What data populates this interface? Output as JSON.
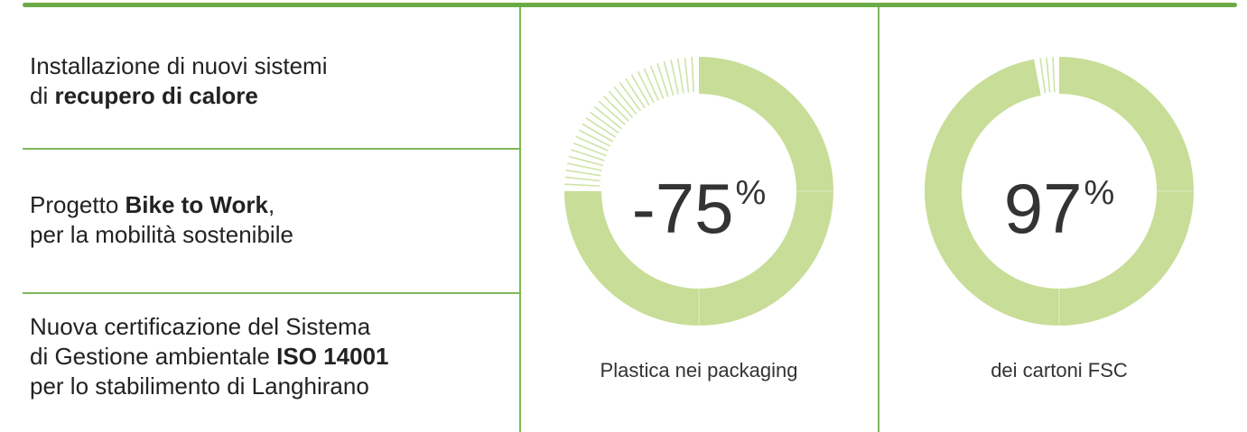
{
  "items": [
    {
      "lines": [
        [
          {
            "t": "Installazione di nuovi sistemi",
            "b": false
          }
        ],
        [
          {
            "t": "di ",
            "b": false
          },
          {
            "t": "recupero di calore",
            "b": true
          }
        ]
      ]
    },
    {
      "lines": [
        [
          {
            "t": "Progetto ",
            "b": false
          },
          {
            "t": "Bike to Work",
            "b": true
          },
          {
            "t": ",",
            "b": false
          }
        ],
        [
          {
            "t": "per la mobilità sostenibile",
            "b": false
          }
        ]
      ]
    },
    {
      "lines": [
        [
          {
            "t": "Nuova certificazione del Sistema",
            "b": false
          }
        ],
        [
          {
            "t": "di Gestione ambientale ",
            "b": false
          },
          {
            "t": "ISO 14001",
            "b": true
          }
        ],
        [
          {
            "t": "per lo stabilimento di Langhirano",
            "b": false
          }
        ]
      ]
    }
  ],
  "stats": [
    {
      "value": "-75",
      "unit": "%",
      "caption": "Plastica nei packaging",
      "fraction": 0.75,
      "color": "#c8dd97"
    },
    {
      "value": "97",
      "unit": "%",
      "caption": "dei cartoni FSC",
      "fraction": 0.97,
      "color": "#c8dd97"
    }
  ],
  "colors": {
    "rule": "#6aab45",
    "divider": "#7fb85a",
    "ring": "#c8dd97",
    "tick": "#cfe3a6"
  }
}
